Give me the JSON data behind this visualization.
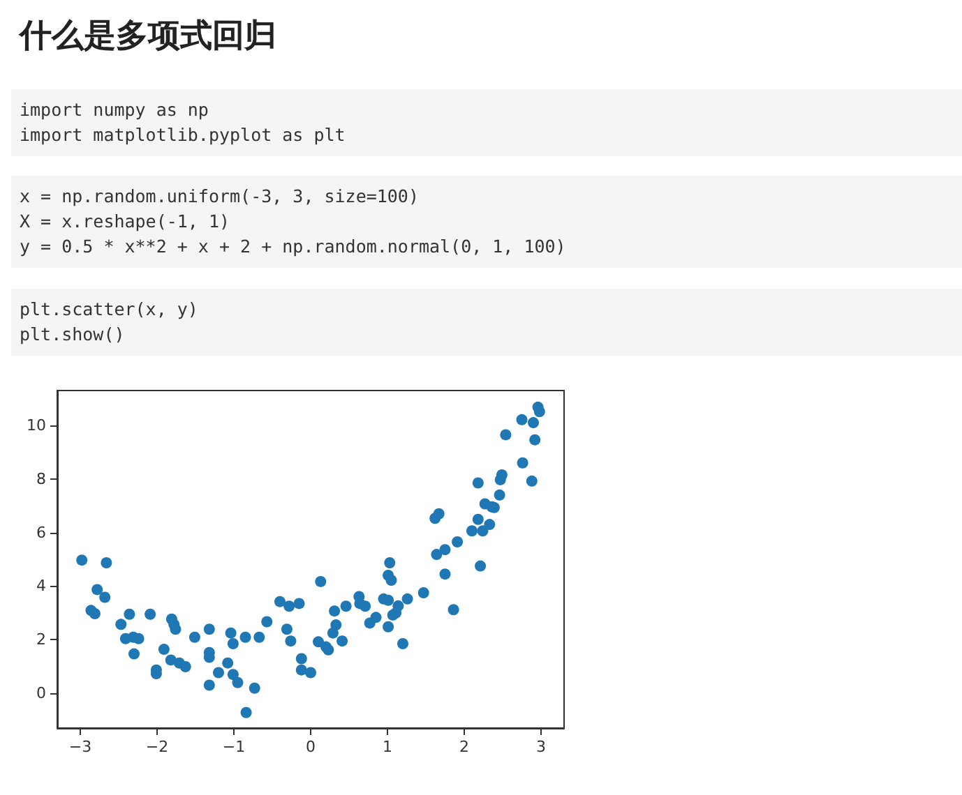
{
  "chart_data": {
    "type": "scatter",
    "title": "什么是多项式回归",
    "annotations": [
      "import numpy as np\nimport matplotlib.pyplot as plt",
      "x = np.random.uniform(-3, 3, size=100)\nX = x.reshape(-1, 1)\ny = 0.5 * x**2 + x + 2 + np.random.normal(0, 1, 100)",
      "plt.scatter(x, y)\nplt.show()"
    ],
    "color": "#1f77b4",
    "marker": "circle",
    "grid": false,
    "xlim": [
      -3.3,
      3.3
    ],
    "ylim": [
      -1.3,
      11.3
    ],
    "xticks": [
      -3,
      -2,
      -1,
      0,
      1,
      2,
      3
    ],
    "yticks": [
      0,
      2,
      4,
      6,
      8,
      10
    ],
    "x": [
      -2.98,
      -2.66,
      -2.86,
      -2.81,
      -2.78,
      -2.68,
      -2.47,
      -2.41,
      -2.36,
      -2.31,
      -2.24,
      -2.3,
      -2.09,
      -2.01,
      -2.01,
      -1.91,
      -1.82,
      -1.81,
      -1.78,
      -1.76,
      -1.71,
      -1.63,
      -1.51,
      -1.32,
      -1.32,
      -1.32,
      -1.32,
      -1.2,
      -1.08,
      -1.04,
      -1.01,
      -1.01,
      -0.95,
      -0.84,
      -0.73,
      -0.85,
      -0.67,
      -0.57,
      -0.4,
      -0.31,
      -0.28,
      -0.26,
      -0.15,
      -0.12,
      -0.12,
      0,
      0.13,
      0.1,
      0.2,
      0.23,
      0.31,
      0.33,
      0.29,
      0.41,
      0.46,
      0.63,
      0.64,
      0.71,
      0.77,
      0.85,
      0.95,
      1.01,
      1.01,
      1.03,
      1.01,
      1.05,
      1.07,
      1.11,
      1.14,
      1.2,
      1.26,
      1.47,
      1.62,
      1.67,
      1.64,
      1.75,
      1.75,
      1.86,
      1.91,
      2.1,
      2.18,
      2.18,
      2.21,
      2.24,
      2.27,
      2.33,
      2.36,
      2.39,
      2.46,
      2.47,
      2.49,
      2.54,
      2.75,
      2.76,
      2.88,
      2.9,
      2.92,
      2.96,
      2.98
    ],
    "values": [
      4.97,
      4.87,
      3.09,
      2.97,
      3.87,
      3.58,
      2.57,
      2.04,
      2.95,
      2.09,
      2.04,
      1.47,
      2.95,
      0.87,
      0.73,
      1.64,
      1.24,
      2.77,
      2.57,
      2.39,
      1.13,
      0.99,
      2.09,
      2.39,
      1.52,
      1.34,
      0.3,
      0.77,
      1.13,
      2.25,
      1.85,
      0.7,
      0.4,
      -0.72,
      0.19,
      2.09,
      2.09,
      2.67,
      3.42,
      2.39,
      3.25,
      1.95,
      3.35,
      1.29,
      0.87,
      0.77,
      4.17,
      1.92,
      1.73,
      1.62,
      3.07,
      2.55,
      2.25,
      1.95,
      3.25,
      3.61,
      3.35,
      3.25,
      2.62,
      2.83,
      3.52,
      3.47,
      2.48,
      4.87,
      4.4,
      4.22,
      2.92,
      3.0,
      3.26,
      1.85,
      3.52,
      3.75,
      6.53,
      6.7,
      5.18,
      5.36,
      4.45,
      3.12,
      5.65,
      6.06,
      7.85,
      6.49,
      4.75,
      6.06,
      7.07,
      6.3,
      6.96,
      6.93,
      7.4,
      7.97,
      8.15,
      9.65,
      10.21,
      8.6,
      7.92,
      10.1,
      9.46,
      10.68,
      10.51
    ]
  }
}
